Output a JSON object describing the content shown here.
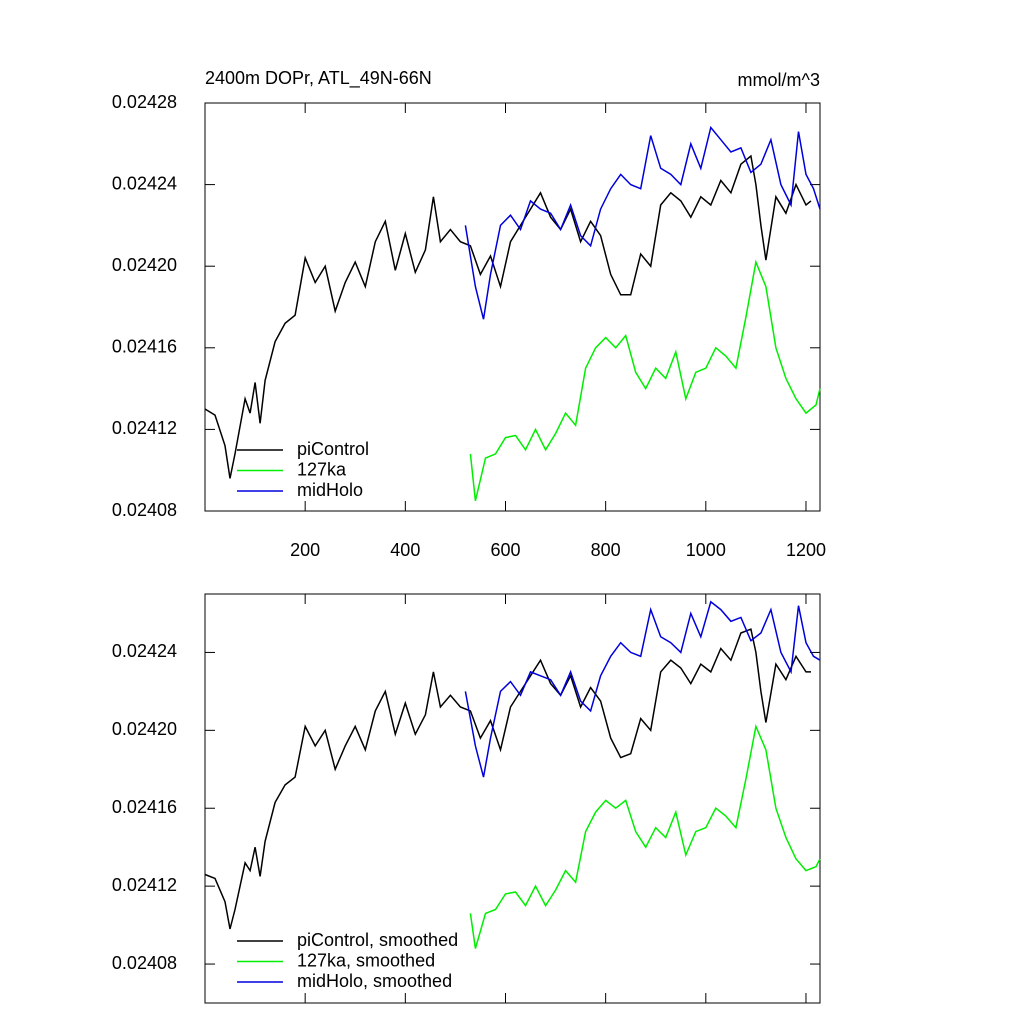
{
  "chart_data": [
    {
      "type": "line",
      "title": "2400m DOPr, ATL_49N-66N",
      "units": "mmol/m^3",
      "xlim": [
        0,
        1228
      ],
      "xticks": [
        200,
        400,
        600,
        800,
        1000,
        1200
      ],
      "xticklabels": true,
      "ylim": [
        0.02408,
        0.02428
      ],
      "yticks": [
        {
          "value": 0.02408,
          "label": "0.02408"
        },
        {
          "value": 0.02412,
          "label": "0.02412"
        },
        {
          "value": 0.02416,
          "label": "0.02416"
        },
        {
          "value": 0.0242,
          "label": "0.02420"
        },
        {
          "value": 0.02424,
          "label": "0.02424"
        },
        {
          "value": 0.02428,
          "label": "0.02428"
        }
      ],
      "series": [
        {
          "name": "piControl",
          "color": "#000000",
          "x": [
            0,
            20,
            40,
            50,
            60,
            80,
            90,
            100,
            110,
            120,
            140,
            160,
            180,
            200,
            220,
            240,
            260,
            280,
            300,
            320,
            340,
            360,
            380,
            400,
            420,
            440,
            456,
            470,
            490,
            510,
            530,
            550,
            570,
            590,
            610,
            630,
            650,
            670,
            690,
            710,
            730,
            750,
            770,
            790,
            810,
            830,
            850,
            870,
            890,
            910,
            930,
            950,
            970,
            990,
            1010,
            1030,
            1050,
            1070,
            1090,
            1100,
            1110,
            1120,
            1140,
            1160,
            1180,
            1200,
            1210
          ],
          "values": [
            0.02413,
            0.024127,
            0.024112,
            0.024096,
            0.024108,
            0.024135,
            0.024128,
            0.024143,
            0.024123,
            0.024144,
            0.024163,
            0.024172,
            0.024176,
            0.024204,
            0.024192,
            0.0242,
            0.024178,
            0.024192,
            0.024202,
            0.02419,
            0.024212,
            0.024222,
            0.024198,
            0.024216,
            0.024197,
            0.024208,
            0.024234,
            0.024212,
            0.024218,
            0.024212,
            0.02421,
            0.024196,
            0.024205,
            0.02419,
            0.024212,
            0.02422,
            0.024228,
            0.024236,
            0.024224,
            0.024218,
            0.024228,
            0.024212,
            0.024222,
            0.024215,
            0.024196,
            0.024186,
            0.024186,
            0.024206,
            0.0242,
            0.02423,
            0.024236,
            0.024232,
            0.024224,
            0.024234,
            0.02423,
            0.024242,
            0.024236,
            0.02425,
            0.024254,
            0.02424,
            0.02422,
            0.024203,
            0.024234,
            0.024226,
            0.02424,
            0.02423,
            0.024232
          ]
        },
        {
          "name": "127ka",
          "color": "#00ee00",
          "x": [
            530,
            540,
            560,
            580,
            600,
            620,
            640,
            660,
            680,
            700,
            720,
            740,
            760,
            780,
            800,
            820,
            840,
            860,
            880,
            900,
            920,
            940,
            960,
            980,
            1000,
            1020,
            1040,
            1060,
            1080,
            1100,
            1120,
            1140,
            1160,
            1180,
            1200,
            1220,
            1228
          ],
          "values": [
            0.024108,
            0.024085,
            0.024106,
            0.024108,
            0.024116,
            0.024117,
            0.02411,
            0.02412,
            0.02411,
            0.024118,
            0.024128,
            0.024122,
            0.02415,
            0.02416,
            0.024165,
            0.02416,
            0.024166,
            0.024148,
            0.02414,
            0.02415,
            0.024145,
            0.024158,
            0.024135,
            0.024148,
            0.02415,
            0.02416,
            0.024156,
            0.02415,
            0.024175,
            0.024202,
            0.02419,
            0.02416,
            0.024145,
            0.024135,
            0.024128,
            0.024132,
            0.02414
          ]
        },
        {
          "name": "midHolo",
          "color": "#0000dd",
          "x": [
            520,
            540,
            556,
            570,
            590,
            610,
            630,
            650,
            670,
            690,
            710,
            730,
            750,
            770,
            790,
            810,
            830,
            850,
            870,
            890,
            910,
            930,
            950,
            970,
            990,
            1010,
            1030,
            1050,
            1070,
            1090,
            1110,
            1130,
            1150,
            1170,
            1185,
            1200,
            1215,
            1228
          ],
          "values": [
            0.02422,
            0.02419,
            0.024174,
            0.024196,
            0.02422,
            0.024225,
            0.024218,
            0.024232,
            0.024228,
            0.024226,
            0.024218,
            0.02423,
            0.024215,
            0.02421,
            0.024228,
            0.024238,
            0.024245,
            0.02424,
            0.024238,
            0.024264,
            0.024248,
            0.024245,
            0.02424,
            0.02426,
            0.024248,
            0.024268,
            0.024262,
            0.024256,
            0.024258,
            0.024246,
            0.02425,
            0.024262,
            0.02424,
            0.02423,
            0.024266,
            0.024245,
            0.024238,
            0.024228
          ]
        }
      ]
    },
    {
      "type": "line",
      "xlim": [
        0,
        1228
      ],
      "xticks": [
        200,
        400,
        600,
        800,
        1000,
        1200
      ],
      "xticklabels": false,
      "ylim": [
        0.02406,
        0.02427
      ],
      "yticks": [
        {
          "value": 0.02408,
          "label": "0.02408"
        },
        {
          "value": 0.02412,
          "label": "0.02412"
        },
        {
          "value": 0.02416,
          "label": "0.02416"
        },
        {
          "value": 0.0242,
          "label": "0.02420"
        },
        {
          "value": 0.02424,
          "label": "0.02424"
        }
      ],
      "series": [
        {
          "name": "piControl, smoothed",
          "color": "#000000",
          "x": [
            0,
            20,
            40,
            50,
            60,
            80,
            90,
            100,
            110,
            120,
            140,
            160,
            180,
            200,
            220,
            240,
            260,
            280,
            300,
            320,
            340,
            360,
            380,
            400,
            420,
            440,
            456,
            470,
            490,
            510,
            530,
            550,
            570,
            590,
            610,
            630,
            650,
            670,
            690,
            710,
            730,
            750,
            770,
            790,
            810,
            830,
            850,
            870,
            890,
            910,
            930,
            950,
            970,
            990,
            1010,
            1030,
            1050,
            1070,
            1090,
            1100,
            1110,
            1120,
            1140,
            1160,
            1180,
            1200,
            1210
          ],
          "values": [
            0.024126,
            0.024124,
            0.024112,
            0.024098,
            0.024108,
            0.024132,
            0.024128,
            0.02414,
            0.024125,
            0.024143,
            0.024163,
            0.024172,
            0.024176,
            0.024202,
            0.024192,
            0.0242,
            0.02418,
            0.024192,
            0.024202,
            0.02419,
            0.02421,
            0.02422,
            0.024198,
            0.024214,
            0.024198,
            0.024208,
            0.02423,
            0.024212,
            0.024218,
            0.024212,
            0.02421,
            0.024196,
            0.024205,
            0.02419,
            0.024212,
            0.02422,
            0.024228,
            0.024236,
            0.024224,
            0.024218,
            0.024228,
            0.024212,
            0.024222,
            0.024215,
            0.024196,
            0.024186,
            0.024188,
            0.024206,
            0.0242,
            0.02423,
            0.024236,
            0.024232,
            0.024224,
            0.024234,
            0.02423,
            0.024242,
            0.024236,
            0.02425,
            0.024252,
            0.02424,
            0.02422,
            0.024204,
            0.024234,
            0.024226,
            0.024238,
            0.02423,
            0.02423
          ]
        },
        {
          "name": "127ka, smoothed",
          "color": "#00ee00",
          "x": [
            530,
            540,
            560,
            580,
            600,
            620,
            640,
            660,
            680,
            700,
            720,
            740,
            760,
            780,
            800,
            820,
            840,
            860,
            880,
            900,
            920,
            940,
            960,
            980,
            1000,
            1020,
            1040,
            1060,
            1080,
            1100,
            1120,
            1140,
            1160,
            1180,
            1200,
            1220,
            1228
          ],
          "values": [
            0.024106,
            0.024088,
            0.024106,
            0.024108,
            0.024116,
            0.024117,
            0.02411,
            0.02412,
            0.02411,
            0.024118,
            0.024128,
            0.024122,
            0.024148,
            0.024158,
            0.024164,
            0.02416,
            0.024164,
            0.024148,
            0.02414,
            0.02415,
            0.024145,
            0.024158,
            0.024136,
            0.024148,
            0.02415,
            0.02416,
            0.024156,
            0.02415,
            0.024175,
            0.024202,
            0.02419,
            0.02416,
            0.024145,
            0.024134,
            0.024128,
            0.02413,
            0.024134
          ]
        },
        {
          "name": "midHolo, smoothed",
          "color": "#0000dd",
          "x": [
            520,
            540,
            556,
            570,
            590,
            610,
            630,
            650,
            670,
            690,
            710,
            730,
            750,
            770,
            790,
            810,
            830,
            850,
            870,
            890,
            910,
            930,
            950,
            970,
            990,
            1010,
            1030,
            1050,
            1070,
            1090,
            1110,
            1130,
            1150,
            1170,
            1185,
            1200,
            1215,
            1228
          ],
          "values": [
            0.02422,
            0.024192,
            0.024176,
            0.024196,
            0.02422,
            0.024225,
            0.024218,
            0.02423,
            0.024228,
            0.024226,
            0.024218,
            0.02423,
            0.024215,
            0.02421,
            0.024228,
            0.024238,
            0.024245,
            0.02424,
            0.024238,
            0.024262,
            0.024248,
            0.024245,
            0.02424,
            0.02426,
            0.024248,
            0.024266,
            0.024262,
            0.024256,
            0.024258,
            0.024246,
            0.02425,
            0.024262,
            0.02424,
            0.02423,
            0.024264,
            0.024245,
            0.024238,
            0.024236
          ]
        }
      ]
    }
  ]
}
